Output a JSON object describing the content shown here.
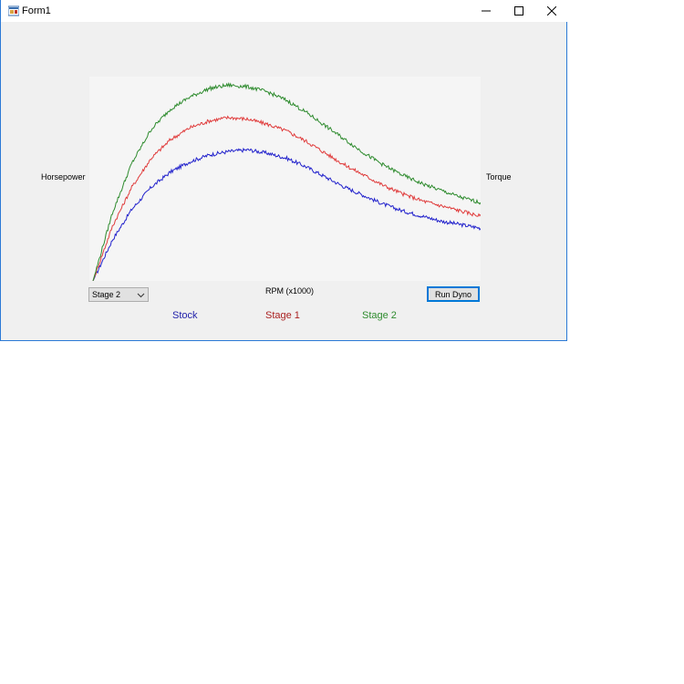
{
  "window": {
    "title": "Form1"
  },
  "colors": {
    "stock": "#2222cc",
    "stage1": "#e03c3c",
    "stage2": "#2e8b2e",
    "plot_bg": "#f5f5f5"
  },
  "labels": {
    "left_axis": "Horsepower",
    "right_axis": "Torque",
    "x_axis": "RPM (x1000)"
  },
  "stage_select": {
    "selected": "Stage 2",
    "icon": "chevron-down-icon"
  },
  "run_button": {
    "label": "Run Dyno"
  },
  "legend": {
    "stock": "Stock",
    "stage1": "Stage 1",
    "stage2": "Stage 2"
  },
  "chart_data": {
    "type": "line",
    "xlabel": "RPM (x1000)",
    "ylabel": "Horsepower",
    "y2label": "Torque",
    "grid": false,
    "x": [
      0,
      0.05,
      0.1,
      0.15,
      0.2,
      0.25,
      0.3,
      0.35,
      0.4,
      0.45,
      0.5,
      0.55,
      0.6,
      0.65,
      0.7,
      0.75,
      0.8,
      0.85,
      0.9,
      0.95,
      1.0
    ],
    "series": [
      {
        "name": "Stock",
        "color": "#2222cc",
        "values": [
          0,
          24,
          42,
          55,
          64,
          70,
          74,
          76,
          77,
          75,
          72,
          67,
          61,
          55,
          50,
          45,
          41,
          38,
          35,
          33,
          31
        ]
      },
      {
        "name": "Stage 1",
        "color": "#e03c3c",
        "values": [
          0,
          32,
          55,
          72,
          83,
          90,
          94,
          96,
          95,
          92,
          88,
          82,
          75,
          68,
          62,
          56,
          51,
          47,
          44,
          41,
          38
        ]
      },
      {
        "name": "Stage 2",
        "color": "#2e8b2e",
        "values": [
          0,
          40,
          69,
          89,
          101,
          108,
          113,
          115,
          114,
          111,
          106,
          99,
          91,
          83,
          75,
          68,
          62,
          57,
          53,
          49,
          46
        ]
      }
    ],
    "ylim": [
      0,
      120
    ]
  }
}
